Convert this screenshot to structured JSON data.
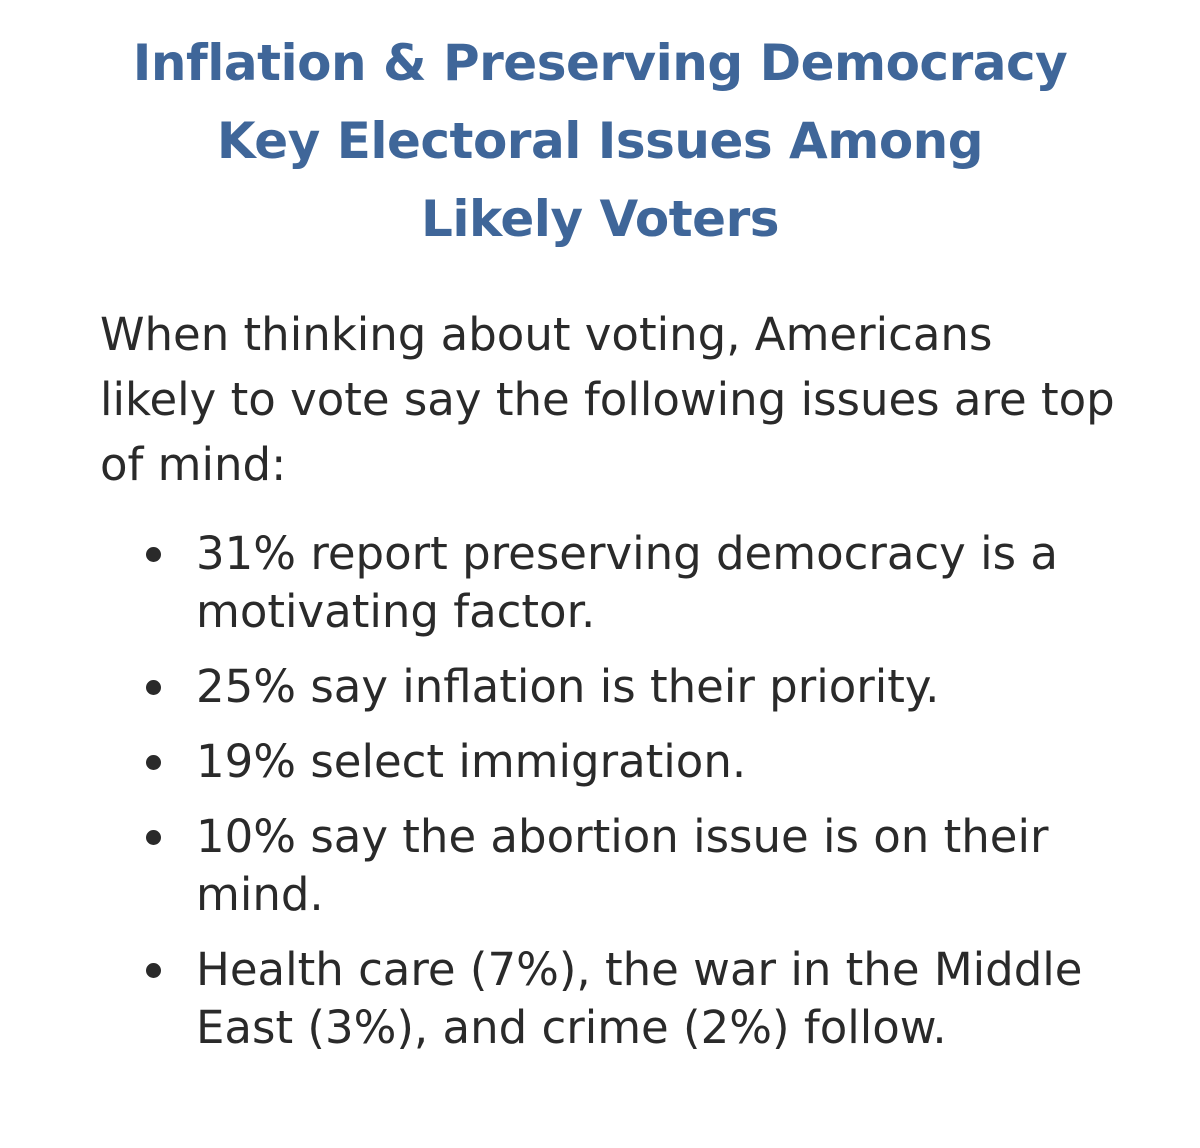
{
  "title": {
    "line1": "Inflation & Preserving Democracy",
    "line2": "Key Electoral Issues Among",
    "line3": "Likely Voters"
  },
  "intro": "When thinking about voting, Americans likely to vote say the following issues are top of mind:",
  "issues": [
    "31% report preserving democracy is a motivating factor.",
    "25% say inflation is their priority.",
    "19% select immigration.",
    "10% say the abortion issue is on their mind.",
    "Health care (7%), the war in the Middle East (3%), and crime (2%) follow."
  ],
  "colors": {
    "title": "#3f6699",
    "body_text": "#2a2a2a",
    "background": "#ffffff"
  }
}
